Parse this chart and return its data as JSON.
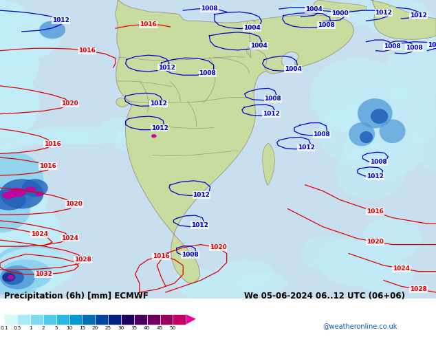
{
  "title_left": "Precipitation (6h) [mm] ECMWF",
  "title_right": "We 05-06-2024 06..12 UTC (06+06)",
  "credit": "@weatheronline.co.uk",
  "colorbar_labels": [
    "0.1",
    "0.5",
    "1",
    "2",
    "5",
    "10",
    "15",
    "20",
    "25",
    "30",
    "35",
    "40",
    "45",
    "50"
  ],
  "colorbar_colors": [
    "#d8f8f8",
    "#aaeaf5",
    "#7ddaf0",
    "#50cae8",
    "#28b8e0",
    "#009ad0",
    "#006db8",
    "#0045a0",
    "#002080",
    "#200060",
    "#480060",
    "#700060",
    "#980060",
    "#c00060",
    "#e800a0"
  ],
  "ocean_color": "#b0cce0",
  "ocean_color_light": "#c8dff0",
  "land_color": "#c8dca0",
  "land_color_med": "#b8cc90",
  "border_color": "#a09080",
  "precip_light": "#c0eef8",
  "precip_mid": "#80ccee",
  "precip_blue1": "#5098d8",
  "precip_blue2": "#2060b8",
  "precip_dark": "#103090",
  "precip_purple": "#600080",
  "precip_magenta": "#c800a0",
  "isobar_red": "#e00000",
  "isobar_blue": "#0000cc",
  "label_fs": 7.5,
  "credit_fs": 7,
  "title_fs": 8.5
}
